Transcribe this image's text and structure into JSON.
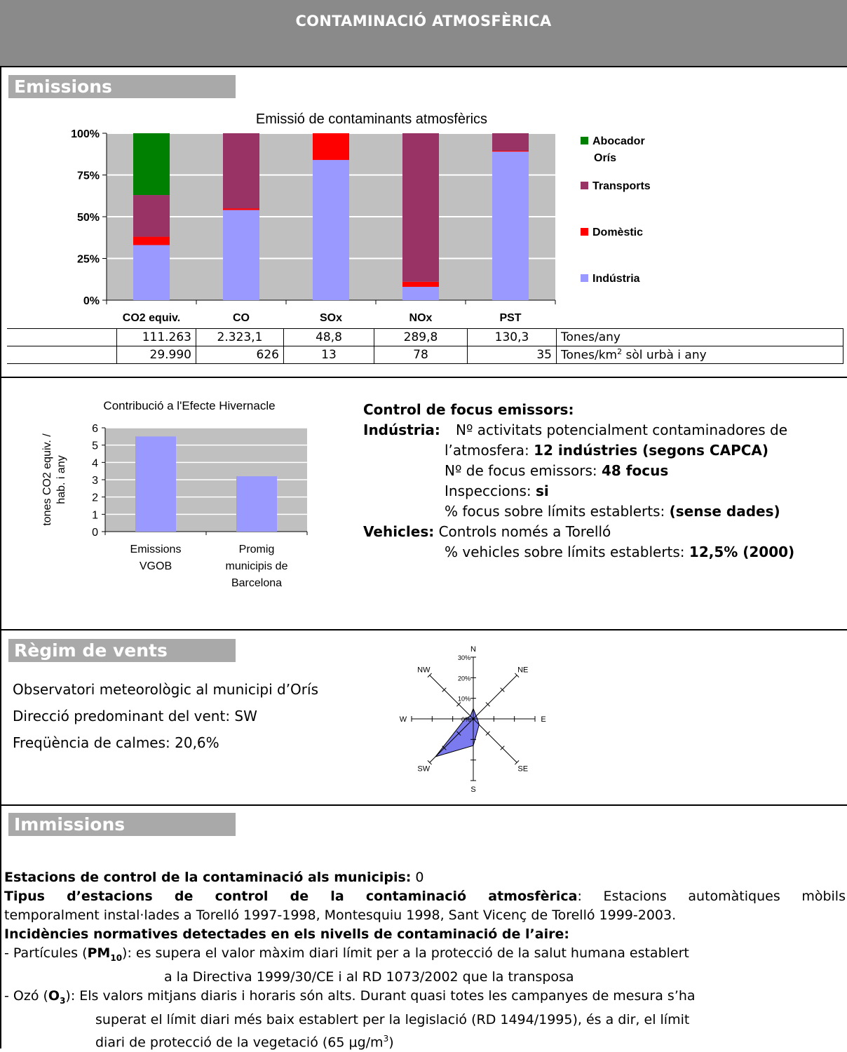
{
  "banner": {
    "title": "CONTAMINACIÓ ATMOSFÈRICA"
  },
  "sections": {
    "emissions": "Emissions",
    "winds": "Règim de vents",
    "immissions": "Immissions"
  },
  "chart_data": [
    {
      "type": "bar",
      "stacked": true,
      "percent": true,
      "title": "Emissió de contaminants atmosfèrics",
      "categories": [
        "CO2 equiv.",
        "CO",
        "SOx",
        "NOx",
        "PST"
      ],
      "yticks": [
        "0%",
        "25%",
        "50%",
        "75%",
        "100%"
      ],
      "ylim": [
        0,
        100
      ],
      "series": [
        {
          "name": "Indústria",
          "color": "#9999ff",
          "values": [
            33,
            54,
            84,
            8,
            89
          ]
        },
        {
          "name": "Domèstic",
          "color": "#ff0000",
          "values": [
            5,
            1,
            16,
            3,
            0.5
          ]
        },
        {
          "name": "Transports",
          "color": "#993366",
          "values": [
            25,
            45,
            0,
            89,
            10.5
          ]
        },
        {
          "name": "Abocador Orís",
          "color": "#008000",
          "values": [
            37,
            0,
            0,
            0,
            0
          ]
        }
      ],
      "legend": [
        "Abocador Orís",
        "Transports",
        "Domèstic",
        "Indústria"
      ],
      "legend_position": "right",
      "background": "#c0c0c0",
      "grid": true
    },
    {
      "type": "bar",
      "title": "Contribució a l'Efecte Hivernacle",
      "ylabel": "tones CO2 equiv. / hab. i any",
      "categories": [
        "Emissions VGOB",
        "Promig municipis de Barcelona"
      ],
      "values": [
        5.5,
        3.2
      ],
      "ylim": [
        0,
        6
      ],
      "yticks": [
        "0",
        "1",
        "2",
        "3",
        "4",
        "5",
        "6"
      ],
      "color": "#9999ff",
      "background": "#c0c0c0",
      "grid": true
    },
    {
      "type": "radar",
      "directions": [
        "N",
        "NE",
        "E",
        "SE",
        "S",
        "SW",
        "W",
        "NW"
      ],
      "values": [
        5,
        2,
        2,
        4,
        13,
        26,
        4,
        2
      ],
      "rticks": [
        "0%",
        "10%",
        "20%",
        "30%"
      ],
      "rlim": [
        0,
        30
      ],
      "color": "#7b7bef"
    }
  ],
  "table": {
    "rows": [
      {
        "values": [
          "111.263",
          "2.323,1",
          "48,8",
          "289,8",
          "130,3"
        ],
        "unit": "Tones/any"
      },
      {
        "values": [
          "29.990",
          "626",
          "13",
          "78",
          "35"
        ],
        "unit_pre": "Tones/km",
        "unit_sup": "2",
        "unit_post": " sòl urbà i any"
      }
    ]
  },
  "focus": {
    "heading": "Control de focus emissors:",
    "industry_label": "Indústria:",
    "industry_l1": "Nº activitats potencialment contaminadores de",
    "industry_l2a": "l’atmosfera: ",
    "industry_l2b": "12 indústries (segons CAPCA)",
    "industry_l3a": "Nº de focus emissors: ",
    "industry_l3b": "48 focus",
    "industry_l4a": "Inspeccions: ",
    "industry_l4b": "si",
    "industry_l5a": "% focus sobre límits establerts: ",
    "industry_l5b": "(sense dades)",
    "vehicles_label": "Vehicles:",
    "vehicles_l1": " Controls només a Torelló",
    "vehicles_l2a": "% vehicles sobre límits establerts: ",
    "vehicles_l2b": "12,5% (2000)"
  },
  "wind": {
    "line1": "Observatori meteorològic al municipi d’Orís",
    "line2": "Direcció predominant del vent: SW",
    "line3": "Freqüència de calmes: 20,6%"
  },
  "immissions": {
    "p1_bold": "Estacions de control de la contaminació als municipis:",
    "p1_text": " 0",
    "p2_bold": "Tipus d’estacions de control de la contaminació atmosfèrica",
    "p2_text_a": ": Estacions automàtiques mòbils",
    "p2_text_b": "temporalment instal·lades a Torelló 1997-1998, Montesquiu 1998, Sant Vicenç de Torelló 1999-2003.",
    "p3_bold": "Incidències normatives detectades en els nivells de contaminació de l’aire:",
    "pm_pre": "- Partícules (",
    "pm_name": "PM",
    "pm_sub": "10",
    "pm_post": "): es supera el  valor màxim diari límit per a la protecció de la salut humana establert",
    "pm_l2": "a la Directiva 1999/30/CE i al RD 1073/2002 que la transposa",
    "o3_pre": "- Ozó (",
    "o3_name": "O",
    "o3_sub": "3",
    "o3_post": "): Els valors mitjans diaris i horaris són alts. Durant quasi totes les campanyes de mesura s’ha",
    "o3_l2": "superat el límit diari més baix establert per la legislació (RD 1494/1995), és a dir, el límit",
    "o3_l3_pre": "diari de protecció de la vegetació (65 μg/m",
    "o3_l3_sup": "3",
    "o3_l3_post": ")"
  }
}
